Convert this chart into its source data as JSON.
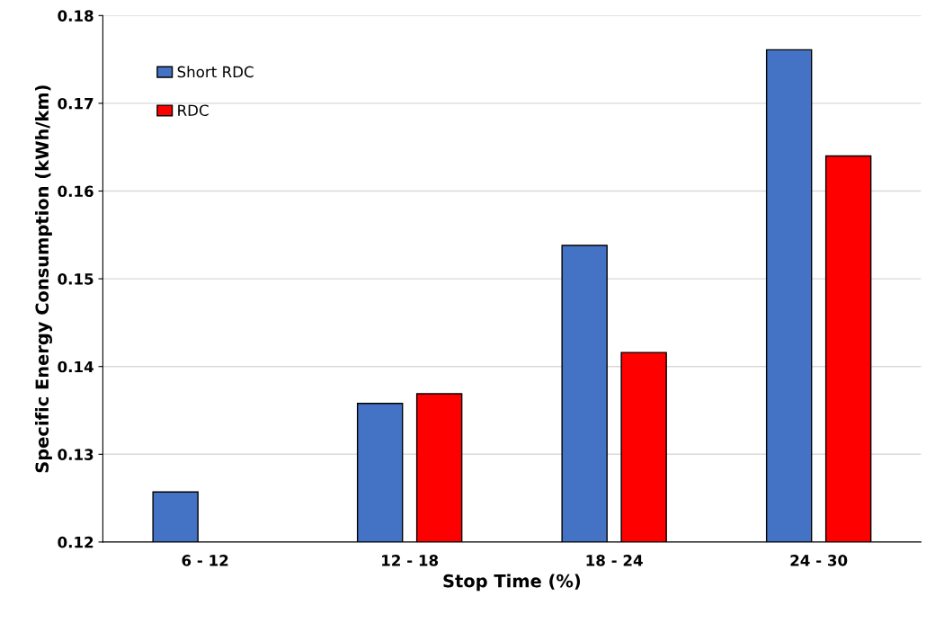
{
  "chart_data": {
    "type": "bar",
    "xlabel": "Stop Time (%)",
    "ylabel": "Specific Energy Consumption (kWh/km)",
    "categories": [
      "6 - 12",
      "12 - 18",
      "18 - 24",
      "24 - 30"
    ],
    "series": [
      {
        "name": "Short RDC",
        "color": "#4472c4",
        "values": [
          0.1257,
          0.1358,
          0.1538,
          0.1761
        ]
      },
      {
        "name": "RDC",
        "color": "#ff0000",
        "values": [
          null,
          0.1369,
          0.1416,
          0.164
        ]
      }
    ],
    "ylim": [
      0.12,
      0.18
    ],
    "yticks": [
      {
        "value": 0.12,
        "label": "0.12"
      },
      {
        "value": 0.13,
        "label": "0.13"
      },
      {
        "value": 0.14,
        "label": "0.14"
      },
      {
        "value": 0.15,
        "label": "0.15"
      },
      {
        "value": 0.16,
        "label": "0.16"
      },
      {
        "value": 0.17,
        "label": "0.17"
      },
      {
        "value": 0.18,
        "label": "0.18"
      }
    ],
    "grid": "y",
    "legend": "top left"
  }
}
